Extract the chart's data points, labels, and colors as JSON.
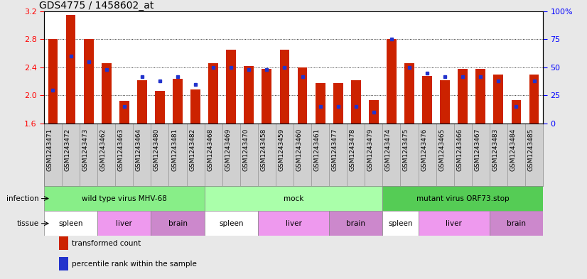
{
  "title": "GDS4775 / 1458602_at",
  "samples": [
    "GSM1243471",
    "GSM1243472",
    "GSM1243473",
    "GSM1243462",
    "GSM1243463",
    "GSM1243464",
    "GSM1243480",
    "GSM1243481",
    "GSM1243482",
    "GSM1243468",
    "GSM1243469",
    "GSM1243470",
    "GSM1243458",
    "GSM1243459",
    "GSM1243460",
    "GSM1243461",
    "GSM1243477",
    "GSM1243478",
    "GSM1243479",
    "GSM1243474",
    "GSM1243475",
    "GSM1243476",
    "GSM1243465",
    "GSM1243466",
    "GSM1243467",
    "GSM1243483",
    "GSM1243484",
    "GSM1243485"
  ],
  "transformed_count": [
    2.8,
    3.15,
    2.8,
    2.46,
    1.92,
    2.22,
    2.07,
    2.24,
    2.09,
    2.46,
    2.65,
    2.42,
    2.38,
    2.65,
    2.4,
    2.18,
    2.18,
    2.22,
    1.93,
    2.8,
    2.46,
    2.28,
    2.22,
    2.38,
    2.38,
    2.3,
    1.93,
    2.3
  ],
  "percentile_rank": [
    30,
    60,
    55,
    48,
    15,
    42,
    38,
    42,
    35,
    50,
    50,
    48,
    48,
    50,
    42,
    15,
    15,
    15,
    10,
    75,
    50,
    45,
    42,
    42,
    42,
    38,
    15,
    38
  ],
  "ylim_left": [
    1.6,
    3.2
  ],
  "ylim_right": [
    0,
    100
  ],
  "yticks_left": [
    1.6,
    2.0,
    2.4,
    2.8,
    3.2
  ],
  "yticks_right": [
    0,
    25,
    50,
    75,
    100
  ],
  "bar_color": "#cc2200",
  "dot_color": "#2233cc",
  "infections": [
    {
      "label": "wild type virus MHV-68",
      "start": 0,
      "end": 9,
      "color": "#88ee88"
    },
    {
      "label": "mock",
      "start": 9,
      "end": 19,
      "color": "#aaffaa"
    },
    {
      "label": "mutant virus ORF73.stop",
      "start": 19,
      "end": 28,
      "color": "#55cc55"
    }
  ],
  "tissues": [
    {
      "label": "spleen",
      "start": 0,
      "end": 3,
      "color": "#ffffff"
    },
    {
      "label": "liver",
      "start": 3,
      "end": 6,
      "color": "#ee99ee"
    },
    {
      "label": "brain",
      "start": 6,
      "end": 9,
      "color": "#cc88cc"
    },
    {
      "label": "spleen",
      "start": 9,
      "end": 12,
      "color": "#ffffff"
    },
    {
      "label": "liver",
      "start": 12,
      "end": 16,
      "color": "#ee99ee"
    },
    {
      "label": "brain",
      "start": 16,
      "end": 19,
      "color": "#cc88cc"
    },
    {
      "label": "spleen",
      "start": 19,
      "end": 21,
      "color": "#ffffff"
    },
    {
      "label": "liver",
      "start": 21,
      "end": 25,
      "color": "#ee99ee"
    },
    {
      "label": "brain",
      "start": 25,
      "end": 28,
      "color": "#cc88cc"
    }
  ],
  "infection_row_label": "infection",
  "tissue_row_label": "tissue",
  "legend_items": [
    {
      "color": "#cc2200",
      "label": "transformed count"
    },
    {
      "color": "#2233cc",
      "label": "percentile rank within the sample"
    }
  ],
  "bg_color": "#e8e8e8",
  "plot_bg": "#ffffff",
  "xtick_area_color": "#d0d0d0",
  "title_fontsize": 10,
  "tick_fontsize": 6.5,
  "annot_fontsize": 7.5,
  "label_fontsize": 7.5
}
